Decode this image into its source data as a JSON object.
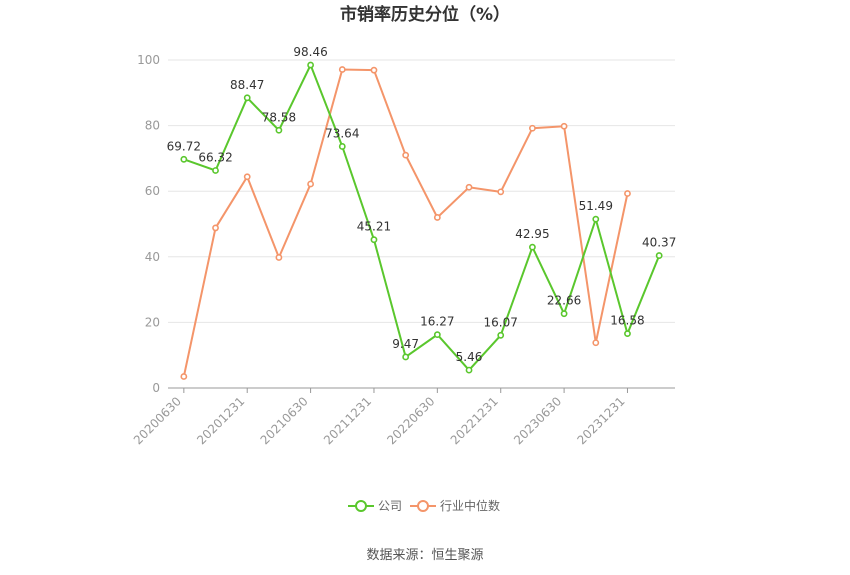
{
  "chart_data": {
    "type": "line",
    "title": "市销率历史分位（%）",
    "x": [
      "20200630",
      "20200930",
      "20201231",
      "20210331",
      "20210630",
      "20210930",
      "20211231",
      "20220331",
      "20220630",
      "20220930",
      "20221231",
      "20230331",
      "20230630",
      "20230930",
      "20231231",
      "20240331"
    ],
    "x_tick_labels": [
      "20200630",
      "20201231",
      "20210630",
      "20211231",
      "20220630",
      "20221231",
      "20230630",
      "20231231"
    ],
    "y_ticks": [
      "0",
      "20",
      "40",
      "60",
      "80",
      "100"
    ],
    "ylim": [
      0,
      100
    ],
    "grid": true,
    "legend_position": "bottom",
    "series": [
      {
        "name": "公司",
        "color": "#5ac72d",
        "values": [
          69.72,
          66.32,
          88.47,
          78.58,
          98.46,
          73.64,
          45.21,
          9.47,
          16.27,
          5.46,
          16.07,
          42.95,
          22.66,
          51.49,
          16.58,
          40.37
        ],
        "labels": [
          "69.72",
          "66.32",
          "88.47",
          "78.58",
          "98.46",
          "73.64",
          "45.21",
          "9.47",
          "16.27",
          "5.46",
          "16.07",
          "42.95",
          "22.66",
          "51.49",
          "16.58",
          "40.37"
        ]
      },
      {
        "name": "行业中位数",
        "color": "#f4956a",
        "values": [
          3.5,
          48.8,
          64.4,
          39.8,
          62.2,
          97.1,
          96.9,
          71.0,
          52.0,
          61.2,
          59.8,
          79.2,
          79.8,
          13.8,
          59.3,
          null
        ]
      }
    ]
  },
  "footer": {
    "source_text": "数据来源：恒生聚源"
  }
}
